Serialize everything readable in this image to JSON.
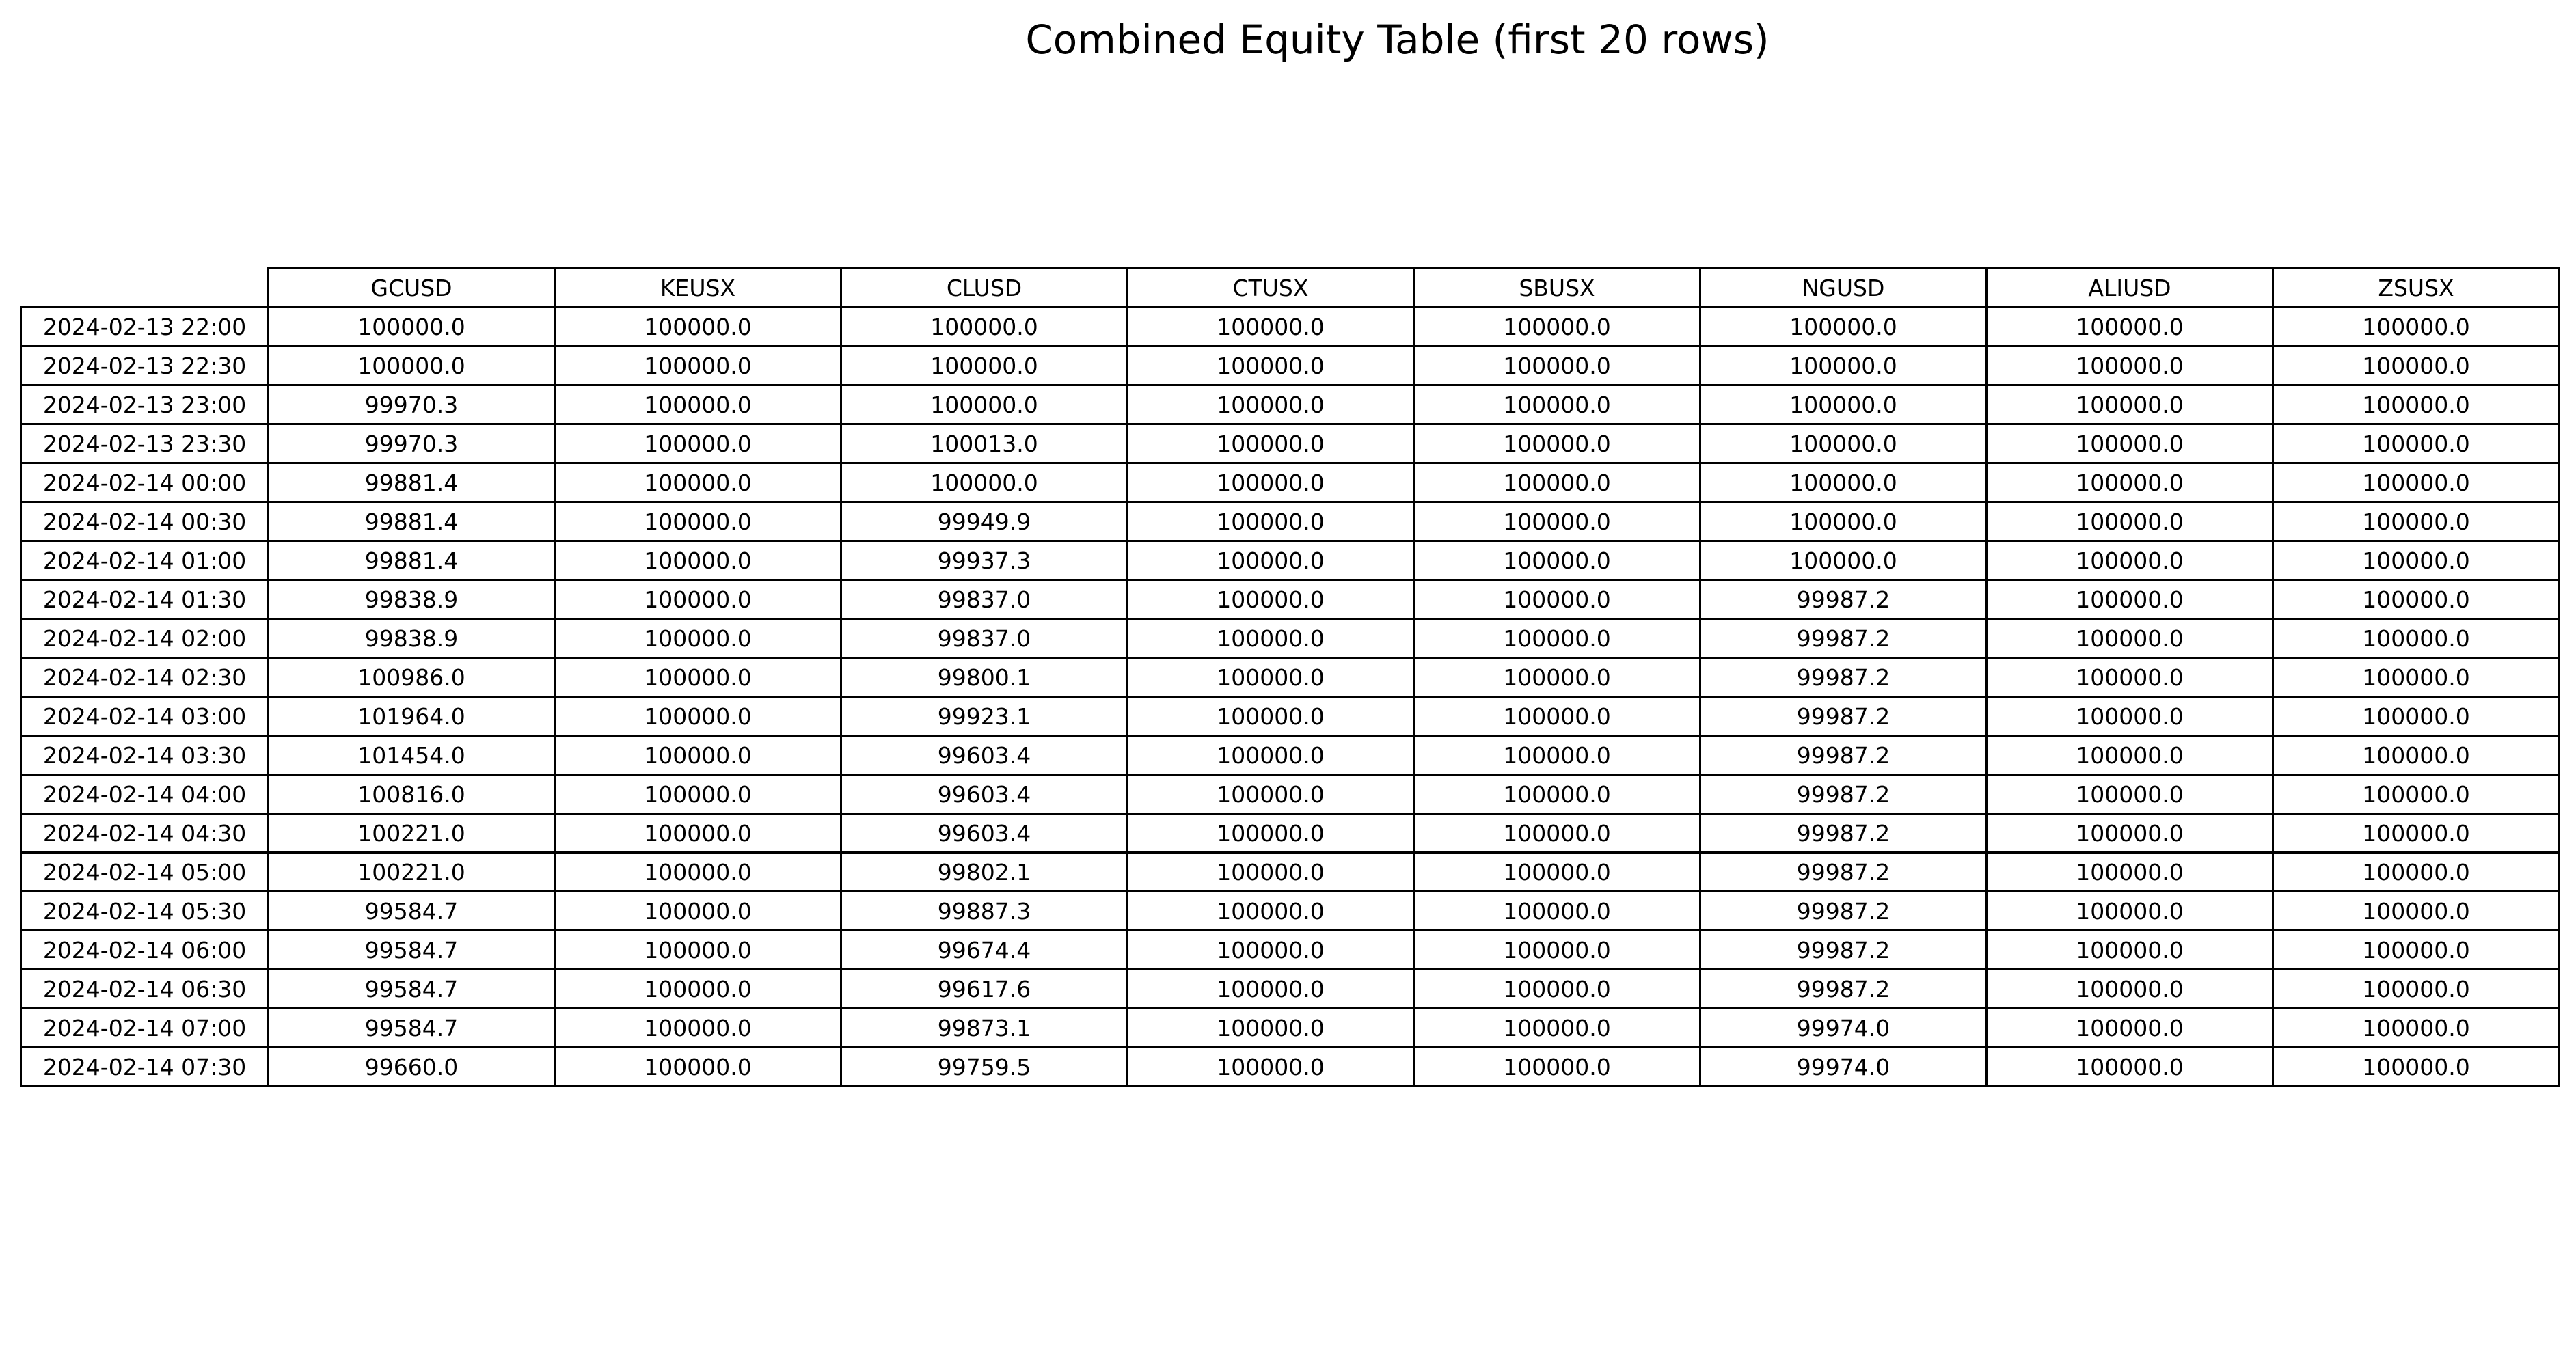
{
  "chart_data": {
    "type": "table",
    "title": "Combined Equity Table (first 20 rows)",
    "columns": [
      "GCUSD",
      "KEUSX",
      "CLUSD",
      "CTUSX",
      "SBUSX",
      "NGUSD",
      "ALIUSD",
      "ZSUSX"
    ],
    "rows": [
      {
        "index": "2024-02-13 22:00",
        "values": [
          "100000.0",
          "100000.0",
          "100000.0",
          "100000.0",
          "100000.0",
          "100000.0",
          "100000.0",
          "100000.0"
        ]
      },
      {
        "index": "2024-02-13 22:30",
        "values": [
          "100000.0",
          "100000.0",
          "100000.0",
          "100000.0",
          "100000.0",
          "100000.0",
          "100000.0",
          "100000.0"
        ]
      },
      {
        "index": "2024-02-13 23:00",
        "values": [
          "99970.3",
          "100000.0",
          "100000.0",
          "100000.0",
          "100000.0",
          "100000.0",
          "100000.0",
          "100000.0"
        ]
      },
      {
        "index": "2024-02-13 23:30",
        "values": [
          "99970.3",
          "100000.0",
          "100013.0",
          "100000.0",
          "100000.0",
          "100000.0",
          "100000.0",
          "100000.0"
        ]
      },
      {
        "index": "2024-02-14 00:00",
        "values": [
          "99881.4",
          "100000.0",
          "100000.0",
          "100000.0",
          "100000.0",
          "100000.0",
          "100000.0",
          "100000.0"
        ]
      },
      {
        "index": "2024-02-14 00:30",
        "values": [
          "99881.4",
          "100000.0",
          "99949.9",
          "100000.0",
          "100000.0",
          "100000.0",
          "100000.0",
          "100000.0"
        ]
      },
      {
        "index": "2024-02-14 01:00",
        "values": [
          "99881.4",
          "100000.0",
          "99937.3",
          "100000.0",
          "100000.0",
          "100000.0",
          "100000.0",
          "100000.0"
        ]
      },
      {
        "index": "2024-02-14 01:30",
        "values": [
          "99838.9",
          "100000.0",
          "99837.0",
          "100000.0",
          "100000.0",
          "99987.2",
          "100000.0",
          "100000.0"
        ]
      },
      {
        "index": "2024-02-14 02:00",
        "values": [
          "99838.9",
          "100000.0",
          "99837.0",
          "100000.0",
          "100000.0",
          "99987.2",
          "100000.0",
          "100000.0"
        ]
      },
      {
        "index": "2024-02-14 02:30",
        "values": [
          "100986.0",
          "100000.0",
          "99800.1",
          "100000.0",
          "100000.0",
          "99987.2",
          "100000.0",
          "100000.0"
        ]
      },
      {
        "index": "2024-02-14 03:00",
        "values": [
          "101964.0",
          "100000.0",
          "99923.1",
          "100000.0",
          "100000.0",
          "99987.2",
          "100000.0",
          "100000.0"
        ]
      },
      {
        "index": "2024-02-14 03:30",
        "values": [
          "101454.0",
          "100000.0",
          "99603.4",
          "100000.0",
          "100000.0",
          "99987.2",
          "100000.0",
          "100000.0"
        ]
      },
      {
        "index": "2024-02-14 04:00",
        "values": [
          "100816.0",
          "100000.0",
          "99603.4",
          "100000.0",
          "100000.0",
          "99987.2",
          "100000.0",
          "100000.0"
        ]
      },
      {
        "index": "2024-02-14 04:30",
        "values": [
          "100221.0",
          "100000.0",
          "99603.4",
          "100000.0",
          "100000.0",
          "99987.2",
          "100000.0",
          "100000.0"
        ]
      },
      {
        "index": "2024-02-14 05:00",
        "values": [
          "100221.0",
          "100000.0",
          "99802.1",
          "100000.0",
          "100000.0",
          "99987.2",
          "100000.0",
          "100000.0"
        ]
      },
      {
        "index": "2024-02-14 05:30",
        "values": [
          "99584.7",
          "100000.0",
          "99887.3",
          "100000.0",
          "100000.0",
          "99987.2",
          "100000.0",
          "100000.0"
        ]
      },
      {
        "index": "2024-02-14 06:00",
        "values": [
          "99584.7",
          "100000.0",
          "99674.4",
          "100000.0",
          "100000.0",
          "99987.2",
          "100000.0",
          "100000.0"
        ]
      },
      {
        "index": "2024-02-14 06:30",
        "values": [
          "99584.7",
          "100000.0",
          "99617.6",
          "100000.0",
          "100000.0",
          "99987.2",
          "100000.0",
          "100000.0"
        ]
      },
      {
        "index": "2024-02-14 07:00",
        "values": [
          "99584.7",
          "100000.0",
          "99873.1",
          "100000.0",
          "100000.0",
          "99974.0",
          "100000.0",
          "100000.0"
        ]
      },
      {
        "index": "2024-02-14 07:30",
        "values": [
          "99660.0",
          "100000.0",
          "99759.5",
          "100000.0",
          "100000.0",
          "99974.0",
          "100000.0",
          "100000.0"
        ]
      }
    ]
  }
}
